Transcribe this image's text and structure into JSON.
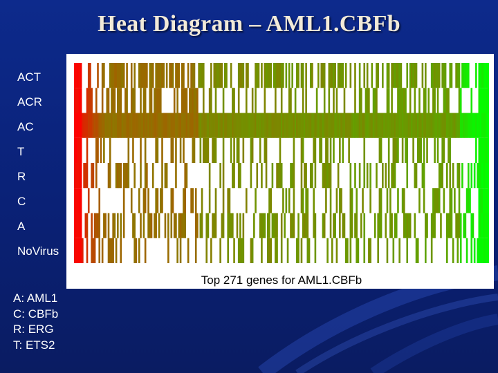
{
  "slide": {
    "title": "Heat Diagram – AML1.CBFb"
  },
  "chart_data": {
    "type": "heatmap",
    "title": "Heat Diagram – AML1.CBFb",
    "xlabel": "Top 271 genes for AML1.CBFb",
    "num_genes": 271,
    "rows": [
      "ACT",
      "ACR",
      "AC",
      "T",
      "R",
      "C",
      "A",
      "NoVirus"
    ],
    "color_scale": {
      "low": "#ff0000",
      "mid": "#8a7a00",
      "high": "#00ff00",
      "absent": "#ffffff"
    },
    "grid": false,
    "legend": null
  },
  "legend": {
    "items": [
      "A: AML1",
      "C: CBFb",
      "R: ERG",
      "T: ETS2"
    ]
  }
}
